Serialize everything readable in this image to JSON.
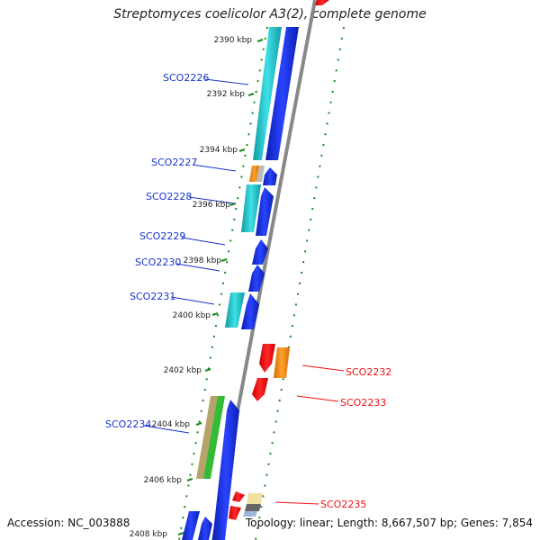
{
  "title": "Streptomyces coelicolor A3(2), complete genome",
  "footer": {
    "accession": "Accession: NC_003888",
    "summary": "Topology: linear; Length: 8,667,507 bp; Genes: 7,854"
  },
  "scale_labels": [
    "2390 kbp",
    "2392 kbp",
    "2394 kbp",
    "2396 kbp",
    "2398 kbp",
    "2400 kbp",
    "2402 kbp",
    "2404 kbp",
    "2406 kbp",
    "2408 kbp"
  ],
  "genes": [
    {
      "id": "SCO2226",
      "strand": "forward",
      "color": "#1a33cc"
    },
    {
      "id": "SCO2227",
      "strand": "forward",
      "color": "#1a33cc"
    },
    {
      "id": "SCO2228",
      "strand": "forward",
      "color": "#1a33cc"
    },
    {
      "id": "SCO2229",
      "strand": "forward",
      "color": "#1a33cc"
    },
    {
      "id": "SCO2230",
      "strand": "forward",
      "color": "#1a33cc"
    },
    {
      "id": "SCO2231",
      "strand": "forward",
      "color": "#1a33cc"
    },
    {
      "id": "SCO2232",
      "strand": "reverse",
      "color": "#ee1111"
    },
    {
      "id": "SCO2233",
      "strand": "reverse",
      "color": "#ee1111"
    },
    {
      "id": "SCO2234",
      "strand": "forward",
      "color": "#1a33cc"
    },
    {
      "id": "SCO2235",
      "strand": "reverse",
      "color": "#ee1111"
    }
  ],
  "colors": {
    "forward": "#1a33cc",
    "reverse": "#ee1111",
    "cyan": "#22c4cc",
    "orange": "#ff8800",
    "tan": "#b5a46a",
    "green": "#33bb33",
    "axis": "#888888",
    "dots": "#1a8a1a"
  }
}
